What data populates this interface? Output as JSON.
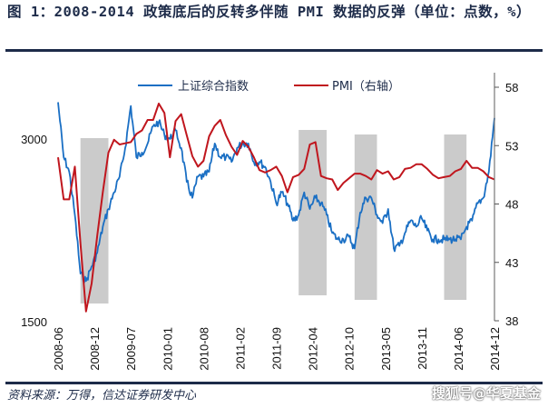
{
  "header": {
    "title": "图 1：2008-2014 政策底后的反转多伴随 PMI 数据的反弹（单位：点数，%）"
  },
  "footer": {
    "source": "资料来源：万得，信达证券研发中心",
    "watermark": "搜狐号@华夏基金"
  },
  "chart_data": {
    "type": "line",
    "title": "2008-2014 政策底后的反转多伴随 PMI 数据的反弹（单位：点数，%）",
    "x_tick_labels": [
      "2008-06",
      "2008-12",
      "2009-07",
      "2010-01",
      "2010-08",
      "2011-02",
      "2011-09",
      "2012-04",
      "2012-10",
      "2013-05",
      "2013-11",
      "2014-06",
      "2014-12"
    ],
    "x_range": [
      "2008-06",
      "2014-12"
    ],
    "left_axis": {
      "label": "上证综合指数",
      "ticks": [
        3000,
        1500
      ],
      "scale": "log",
      "range": [
        1500,
        3000
      ]
    },
    "right_axis": {
      "label": "PMI（右轴）",
      "ticks": [
        58,
        53,
        48,
        43,
        38
      ],
      "range": [
        38,
        60
      ]
    },
    "legend": {
      "position": "top",
      "entries": [
        "上证综合指数",
        "PMI（右轴）"
      ]
    },
    "shaded_periods": [
      {
        "start": "2008-10",
        "end": "2009-03"
      },
      {
        "start": "2012-01",
        "end": "2012-06"
      },
      {
        "start": "2012-11",
        "end": "2013-03"
      },
      {
        "start": "2014-03",
        "end": "2014-07"
      }
    ],
    "series": [
      {
        "name": "上证综合指数",
        "axis": "left",
        "color": "#1a6fc4",
        "x": [
          "2008-06",
          "2008-07",
          "2008-08",
          "2008-09",
          "2008-10",
          "2008-11",
          "2008-12",
          "2009-01",
          "2009-02",
          "2009-03",
          "2009-04",
          "2009-05",
          "2009-06",
          "2009-07",
          "2009-08",
          "2009-09",
          "2009-10",
          "2009-11",
          "2009-12",
          "2010-01",
          "2010-02",
          "2010-03",
          "2010-04",
          "2010-05",
          "2010-06",
          "2010-07",
          "2010-08",
          "2010-09",
          "2010-10",
          "2010-11",
          "2010-12",
          "2011-01",
          "2011-02",
          "2011-03",
          "2011-04",
          "2011-05",
          "2011-06",
          "2011-07",
          "2011-08",
          "2011-09",
          "2011-10",
          "2011-11",
          "2011-12",
          "2012-01",
          "2012-02",
          "2012-03",
          "2012-04",
          "2012-05",
          "2012-06",
          "2012-07",
          "2012-08",
          "2012-09",
          "2012-10",
          "2012-11",
          "2012-12",
          "2013-01",
          "2013-02",
          "2013-03",
          "2013-04",
          "2013-05",
          "2013-06",
          "2013-07",
          "2013-08",
          "2013-09",
          "2013-10",
          "2013-11",
          "2013-12",
          "2014-01",
          "2014-02",
          "2014-03",
          "2014-04",
          "2014-05",
          "2014-06",
          "2014-07",
          "2014-08",
          "2014-09",
          "2014-10",
          "2014-11",
          "2014-12"
        ],
        "values": [
          3450,
          2800,
          2650,
          2250,
          1800,
          1750,
          1850,
          1950,
          2150,
          2300,
          2450,
          2600,
          2900,
          3400,
          2800,
          2850,
          2950,
          3150,
          3200,
          3050,
          3000,
          3100,
          2900,
          2550,
          2400,
          2600,
          2600,
          2650,
          2950,
          2800,
          2800,
          2750,
          2900,
          2950,
          2950,
          2750,
          2750,
          2700,
          2550,
          2350,
          2450,
          2350,
          2200,
          2250,
          2450,
          2300,
          2400,
          2350,
          2250,
          2100,
          2050,
          2050,
          2070,
          1980,
          2270,
          2400,
          2400,
          2250,
          2180,
          2300,
          1980,
          2000,
          2100,
          2200,
          2150,
          2220,
          2120,
          2050,
          2050,
          2050,
          2050,
          2050,
          2050,
          2150,
          2200,
          2350,
          2400,
          2650,
          3250
        ]
      },
      {
        "name": "PMI（右轴）",
        "axis": "right",
        "color": "#c0161e",
        "x": [
          "2008-06",
          "2008-07",
          "2008-08",
          "2008-09",
          "2008-10",
          "2008-11",
          "2008-12",
          "2009-01",
          "2009-02",
          "2009-03",
          "2009-04",
          "2009-05",
          "2009-06",
          "2009-07",
          "2009-08",
          "2009-09",
          "2009-10",
          "2009-11",
          "2009-12",
          "2010-01",
          "2010-02",
          "2010-03",
          "2010-04",
          "2010-05",
          "2010-06",
          "2010-07",
          "2010-08",
          "2010-09",
          "2010-10",
          "2010-11",
          "2010-12",
          "2011-01",
          "2011-02",
          "2011-03",
          "2011-04",
          "2011-05",
          "2011-06",
          "2011-07",
          "2011-08",
          "2011-09",
          "2011-10",
          "2011-11",
          "2011-12",
          "2012-01",
          "2012-02",
          "2012-03",
          "2012-04",
          "2012-05",
          "2012-06",
          "2012-07",
          "2012-08",
          "2012-09",
          "2012-10",
          "2012-11",
          "2012-12",
          "2013-01",
          "2013-02",
          "2013-03",
          "2013-04",
          "2013-05",
          "2013-06",
          "2013-07",
          "2013-08",
          "2013-09",
          "2013-10",
          "2013-11",
          "2013-12",
          "2014-01",
          "2014-02",
          "2014-03",
          "2014-04",
          "2014-05",
          "2014-06",
          "2014-07",
          "2014-08",
          "2014-09",
          "2014-10",
          "2014-11",
          "2014-12"
        ],
        "values": [
          52.0,
          48.4,
          48.4,
          51.2,
          44.6,
          38.8,
          41.2,
          45.3,
          49.0,
          52.4,
          53.5,
          53.1,
          53.2,
          53.3,
          54.0,
          54.3,
          55.2,
          55.2,
          56.6,
          55.8,
          52.0,
          55.1,
          55.7,
          53.9,
          52.1,
          51.2,
          51.7,
          53.8,
          54.7,
          55.2,
          53.9,
          52.9,
          52.2,
          53.4,
          52.9,
          52.0,
          50.9,
          50.7,
          50.9,
          51.2,
          50.4,
          49.0,
          50.3,
          50.5,
          51.0,
          53.1,
          53.3,
          50.4,
          50.2,
          50.1,
          49.2,
          49.8,
          50.2,
          50.6,
          50.6,
          50.4,
          50.1,
          50.9,
          50.6,
          50.8,
          50.1,
          50.3,
          51.0,
          51.1,
          51.4,
          51.4,
          51.0,
          50.5,
          50.2,
          50.3,
          50.4,
          50.8,
          51.0,
          51.7,
          51.1,
          51.1,
          50.8,
          50.3,
          50.1
        ]
      }
    ]
  }
}
